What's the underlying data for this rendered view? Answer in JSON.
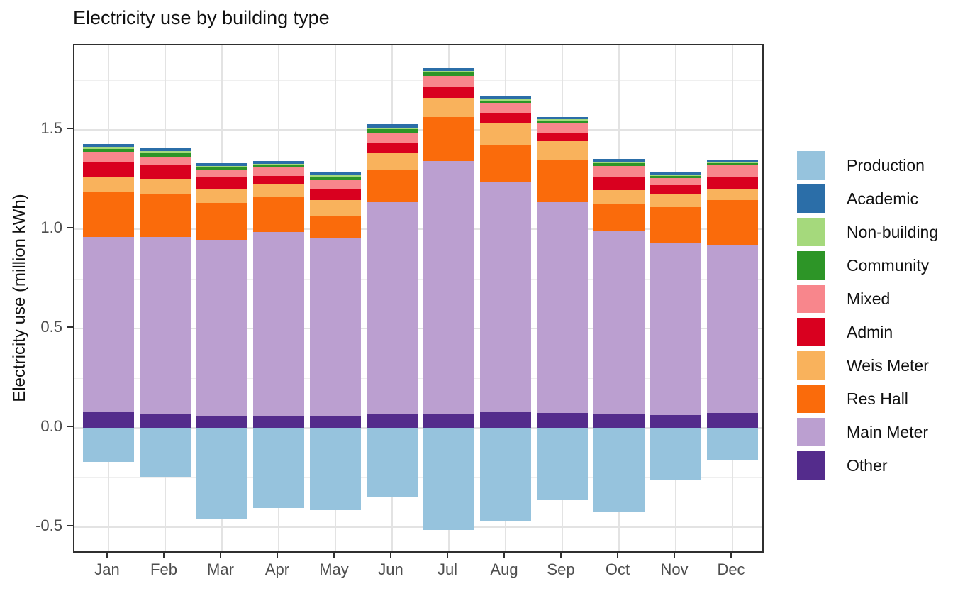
{
  "title": "Electricity use by building type",
  "y_axis": {
    "label": "Electricity use (million kWh)",
    "tick_labels": [
      "-0.5",
      "0.0",
      "0.5",
      "1.0",
      "1.5"
    ],
    "tick_values": [
      -0.5,
      0.0,
      0.5,
      1.0,
      1.5
    ],
    "minor_tick_values": [
      -0.25,
      0.25,
      0.75,
      1.25,
      1.75
    ]
  },
  "x_axis": {
    "categories": [
      "Jan",
      "Feb",
      "Mar",
      "Apr",
      "May",
      "Jun",
      "Jul",
      "Aug",
      "Sep",
      "Oct",
      "Nov",
      "Dec"
    ]
  },
  "legend": {
    "position": "right",
    "items": [
      {
        "label": "Production",
        "color": "#96c3dd"
      },
      {
        "label": "Academic",
        "color": "#2b6ea8"
      },
      {
        "label": "Non-building",
        "color": "#a5d97c"
      },
      {
        "label": "Community",
        "color": "#2d9527"
      },
      {
        "label": "Mixed",
        "color": "#f8868c"
      },
      {
        "label": "Admin",
        "color": "#d9001f"
      },
      {
        "label": "Weis Meter",
        "color": "#f9b25c"
      },
      {
        "label": "Res Hall",
        "color": "#fa6b0b"
      },
      {
        "label": "Main Meter",
        "color": "#bb9fd0"
      },
      {
        "label": "Other",
        "color": "#542c8c"
      }
    ]
  },
  "chart_data": {
    "type": "bar",
    "stacked": true,
    "title": "Electricity use by building type",
    "xlabel": "",
    "ylabel": "Electricity use (million kWh)",
    "ylim": [
      -0.64,
      1.93
    ],
    "grid": true,
    "legend_position": "right",
    "categories": [
      "Jan",
      "Feb",
      "Mar",
      "Apr",
      "May",
      "Jun",
      "Jul",
      "Aug",
      "Sep",
      "Oct",
      "Nov",
      "Dec"
    ],
    "units": "million kWh",
    "series": [
      {
        "name": "Production",
        "values": [
          -0.171,
          -0.25,
          -0.457,
          -0.404,
          -0.414,
          -0.35,
          -0.514,
          -0.47,
          -0.365,
          -0.425,
          -0.262,
          -0.165
        ]
      },
      {
        "name": "Academic",
        "values": [
          0.017,
          0.016,
          0.014,
          0.014,
          0.014,
          0.016,
          0.016,
          0.014,
          0.014,
          0.014,
          0.014,
          0.013
        ]
      },
      {
        "name": "Non-building",
        "values": [
          0.008,
          0.011,
          0.006,
          0.007,
          0.007,
          0.008,
          0.005,
          0.006,
          0.005,
          0.006,
          0.007,
          0.005
        ]
      },
      {
        "name": "Community",
        "values": [
          0.017,
          0.018,
          0.015,
          0.013,
          0.014,
          0.02,
          0.021,
          0.014,
          0.01,
          0.014,
          0.011,
          0.01
        ]
      },
      {
        "name": "Mixed",
        "values": [
          0.05,
          0.041,
          0.03,
          0.041,
          0.048,
          0.051,
          0.054,
          0.049,
          0.055,
          0.057,
          0.033,
          0.057
        ]
      },
      {
        "name": "Admin",
        "values": [
          0.074,
          0.068,
          0.065,
          0.039,
          0.056,
          0.048,
          0.057,
          0.054,
          0.04,
          0.064,
          0.045,
          0.063
        ]
      },
      {
        "name": "Weis Meter",
        "values": [
          0.073,
          0.076,
          0.068,
          0.071,
          0.083,
          0.087,
          0.096,
          0.106,
          0.093,
          0.069,
          0.068,
          0.056
        ]
      },
      {
        "name": "Res Hall",
        "values": [
          0.232,
          0.219,
          0.185,
          0.175,
          0.105,
          0.163,
          0.221,
          0.191,
          0.214,
          0.135,
          0.181,
          0.224
        ]
      },
      {
        "name": "Main Meter",
        "values": [
          0.88,
          0.886,
          0.888,
          0.924,
          0.901,
          1.066,
          1.271,
          1.156,
          1.061,
          0.924,
          0.864,
          0.848
        ]
      },
      {
        "name": "Other",
        "values": [
          0.079,
          0.073,
          0.06,
          0.06,
          0.057,
          0.069,
          0.071,
          0.078,
          0.074,
          0.07,
          0.065,
          0.075
        ]
      }
    ],
    "stack_order_bottom_to_top": [
      "Other",
      "Main Meter",
      "Res Hall",
      "Weis Meter",
      "Admin",
      "Mixed",
      "Community",
      "Non-building",
      "Academic"
    ],
    "negative_series": [
      "Production"
    ]
  }
}
